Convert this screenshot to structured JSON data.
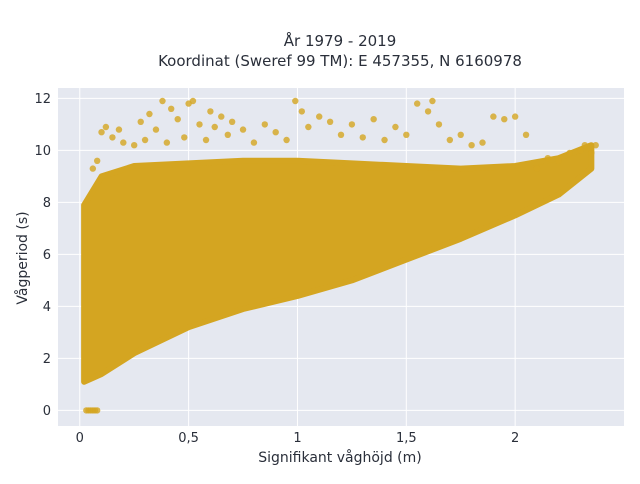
{
  "chart_data": {
    "type": "scatter",
    "title_line1": "År 1979 - 2019",
    "title_line2": "Koordinat (Sweref 99 TM): E 457355, N 6160978",
    "xlabel": "Signifikant våghöjd (m)",
    "ylabel": "Vågperiod (s)",
    "xlim": [
      -0.1,
      2.5
    ],
    "ylim": [
      -0.6,
      12.4
    ],
    "xticks": [
      0,
      0.5,
      1,
      1.5,
      2
    ],
    "xtick_labels": [
      "0",
      "0,5",
      "1",
      "1,5",
      "2"
    ],
    "yticks": [
      0,
      2,
      4,
      6,
      8,
      10,
      12
    ],
    "ytick_labels": [
      "0",
      "2",
      "4",
      "6",
      "8",
      "10",
      "12"
    ],
    "grid": true,
    "legend": "none",
    "colors": {
      "marker": "#d4a521",
      "plot_bg": "#e5e8f0",
      "grid": "#ffffff",
      "text": "#2a2f3a"
    },
    "envelope": {
      "hs": [
        0.02,
        0.1,
        0.25,
        0.5,
        0.75,
        1.0,
        1.25,
        1.5,
        1.75,
        2.0,
        2.2,
        2.35
      ],
      "tp_lower": [
        1.1,
        1.4,
        2.2,
        3.2,
        3.9,
        4.4,
        5.0,
        5.8,
        6.6,
        7.5,
        8.3,
        9.3
      ],
      "tp_upper": [
        7.9,
        9.0,
        9.4,
        9.5,
        9.6,
        9.6,
        9.5,
        9.4,
        9.3,
        9.4,
        9.7,
        10.2
      ]
    },
    "points": [
      [
        0.03,
        0.0
      ],
      [
        0.04,
        0.0
      ],
      [
        0.05,
        0.0
      ],
      [
        0.06,
        0.0
      ],
      [
        0.07,
        0.0
      ],
      [
        0.08,
        0.0
      ],
      [
        0.25,
        10.2
      ],
      [
        0.28,
        11.1
      ],
      [
        0.3,
        10.4
      ],
      [
        0.32,
        11.4
      ],
      [
        0.35,
        10.8
      ],
      [
        0.38,
        11.9
      ],
      [
        0.4,
        10.3
      ],
      [
        0.42,
        11.6
      ],
      [
        0.45,
        11.2
      ],
      [
        0.48,
        10.5
      ],
      [
        0.5,
        11.8
      ],
      [
        0.52,
        11.9
      ],
      [
        0.55,
        11.0
      ],
      [
        0.58,
        10.4
      ],
      [
        0.6,
        11.5
      ],
      [
        0.62,
        10.9
      ],
      [
        0.65,
        11.3
      ],
      [
        0.68,
        10.6
      ],
      [
        0.7,
        11.1
      ],
      [
        0.75,
        10.8
      ],
      [
        0.8,
        10.3
      ],
      [
        0.85,
        11.0
      ],
      [
        0.9,
        10.7
      ],
      [
        0.95,
        10.4
      ],
      [
        0.99,
        11.9
      ],
      [
        1.02,
        11.5
      ],
      [
        1.05,
        10.9
      ],
      [
        1.1,
        11.3
      ],
      [
        1.15,
        11.1
      ],
      [
        1.2,
        10.6
      ],
      [
        1.25,
        11.0
      ],
      [
        1.3,
        10.5
      ],
      [
        1.35,
        11.2
      ],
      [
        1.4,
        10.4
      ],
      [
        1.45,
        10.9
      ],
      [
        1.5,
        10.6
      ],
      [
        1.55,
        11.8
      ],
      [
        1.6,
        11.5
      ],
      [
        1.62,
        11.9
      ],
      [
        1.65,
        11.0
      ],
      [
        1.7,
        10.4
      ],
      [
        1.75,
        10.6
      ],
      [
        1.8,
        10.2
      ],
      [
        1.85,
        10.3
      ],
      [
        1.9,
        11.3
      ],
      [
        1.95,
        11.2
      ],
      [
        2.0,
        11.3
      ],
      [
        2.05,
        10.6
      ],
      [
        0.1,
        10.7
      ],
      [
        0.12,
        10.9
      ],
      [
        0.15,
        10.5
      ],
      [
        0.18,
        10.8
      ],
      [
        0.2,
        10.3
      ],
      [
        0.08,
        9.6
      ],
      [
        0.06,
        9.3
      ],
      [
        2.1,
        9.3
      ],
      [
        2.15,
        9.7
      ],
      [
        2.2,
        9.6
      ],
      [
        2.25,
        9.9
      ],
      [
        2.3,
        10.0
      ],
      [
        2.32,
        10.2
      ],
      [
        2.37,
        10.2
      ],
      [
        2.35,
        9.9
      ]
    ]
  }
}
